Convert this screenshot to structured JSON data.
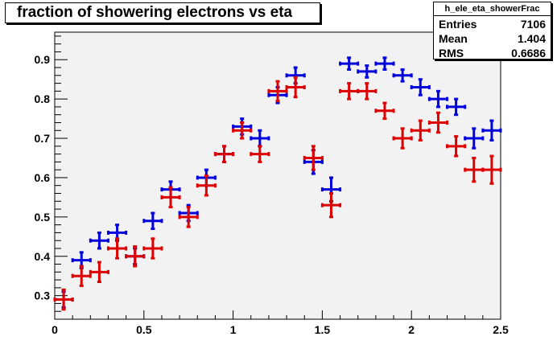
{
  "chart_data": {
    "type": "scatter",
    "title": "fraction of showering electrons vs eta",
    "stats": {
      "name": "h_ele_eta_showerFrac",
      "rows": [
        {
          "label": "Entries",
          "value": "7106"
        },
        {
          "label": "Mean",
          "value": "1.404"
        },
        {
          "label": "RMS",
          "value": "0.6686"
        }
      ]
    },
    "xlim": [
      0,
      2.5
    ],
    "ylim": [
      0.24,
      0.97
    ],
    "x_ticks": [
      0,
      0.5,
      1,
      1.5,
      2,
      2.5
    ],
    "x_tick_labels": [
      "0",
      "0.5",
      "1",
      "1.5",
      "2",
      "2.5"
    ],
    "y_ticks": [
      0.3,
      0.4,
      0.5,
      0.6,
      0.7,
      0.8,
      0.9
    ],
    "y_tick_labels": [
      "0.3",
      "0.4",
      "0.5",
      "0.6",
      "0.7",
      "0.8",
      "0.9"
    ],
    "bin_half_width": 0.05,
    "series": [
      {
        "color": "#0000dd",
        "x": [
          0.05,
          0.15,
          0.25,
          0.35,
          0.45,
          0.55,
          0.65,
          0.75,
          0.85,
          0.95,
          1.05,
          1.15,
          1.25,
          1.35,
          1.45,
          1.55,
          1.65,
          1.75,
          1.85,
          1.95,
          2.05,
          2.15,
          2.25,
          2.35,
          2.45
        ],
        "y": [
          0.29,
          0.39,
          0.44,
          0.46,
          0.4,
          0.49,
          0.57,
          0.51,
          0.6,
          0.66,
          0.73,
          0.7,
          0.81,
          0.86,
          0.64,
          0.57,
          0.89,
          0.87,
          0.89,
          0.86,
          0.83,
          0.8,
          0.78,
          0.7,
          0.72
        ],
        "err": [
          0.02,
          0.02,
          0.02,
          0.02,
          0.02,
          0.02,
          0.02,
          0.02,
          0.02,
          0.02,
          0.02,
          0.02,
          0.02,
          0.02,
          0.03,
          0.03,
          0.015,
          0.015,
          0.015,
          0.015,
          0.02,
          0.02,
          0.02,
          0.025,
          0.025
        ]
      },
      {
        "color": "#dd0000",
        "x": [
          0.05,
          0.15,
          0.25,
          0.35,
          0.45,
          0.55,
          0.65,
          0.75,
          0.85,
          0.95,
          1.05,
          1.15,
          1.25,
          1.35,
          1.45,
          1.55,
          1.65,
          1.75,
          1.85,
          1.95,
          2.05,
          2.15,
          2.25,
          2.35,
          2.45
        ],
        "y": [
          0.29,
          0.35,
          0.36,
          0.42,
          0.4,
          0.42,
          0.55,
          0.5,
          0.58,
          0.66,
          0.72,
          0.66,
          0.82,
          0.83,
          0.65,
          0.53,
          0.82,
          0.82,
          0.77,
          0.7,
          0.72,
          0.74,
          0.68,
          0.62,
          0.62
        ],
        "err": [
          0.025,
          0.025,
          0.025,
          0.025,
          0.025,
          0.025,
          0.025,
          0.025,
          0.025,
          0.02,
          0.02,
          0.02,
          0.025,
          0.025,
          0.03,
          0.03,
          0.02,
          0.02,
          0.02,
          0.025,
          0.025,
          0.025,
          0.025,
          0.03,
          0.035
        ]
      }
    ]
  }
}
